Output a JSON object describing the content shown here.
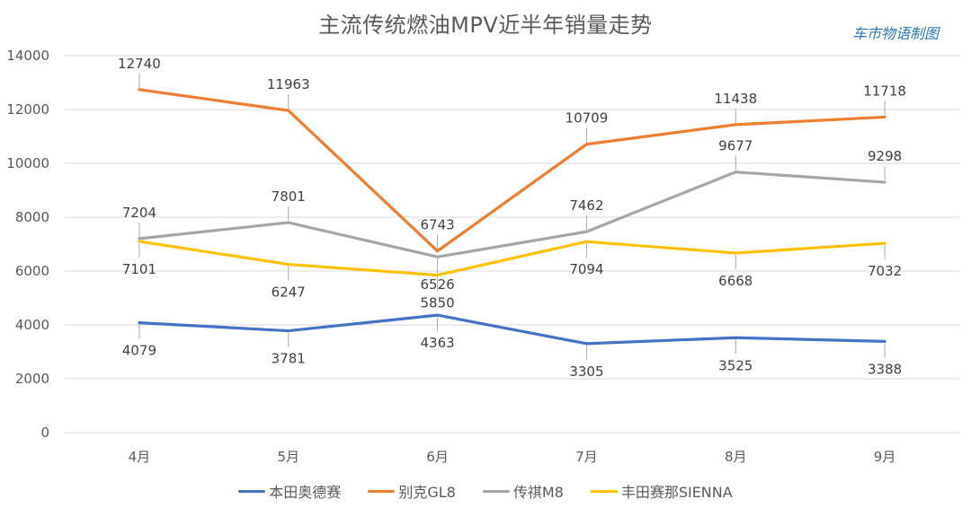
{
  "chart_data": {
    "type": "line",
    "title": "主流传统燃油MPV近半年销量走势",
    "watermark": "车市物语制图",
    "xlabel": "",
    "ylabel": "",
    "categories": [
      "4月",
      "5月",
      "6月",
      "7月",
      "8月",
      "9月"
    ],
    "ylim": [
      0,
      14000
    ],
    "yticks": [
      0,
      2000,
      4000,
      6000,
      8000,
      10000,
      12000,
      14000
    ],
    "grid": true,
    "legend_position": "bottom",
    "series": [
      {
        "name": "本田奥德赛",
        "color": "#4472c4",
        "values": [
          4079,
          3781,
          4363,
          3305,
          3525,
          3388
        ],
        "label_pos": [
          "below",
          "below",
          "below",
          "below",
          "below",
          "below"
        ]
      },
      {
        "name": "别克GL8",
        "color": "#ed7d31",
        "values": [
          12740,
          11963,
          6743,
          10709,
          11438,
          11718
        ],
        "label_pos": [
          "above",
          "above",
          "above",
          "above",
          "above",
          "above"
        ]
      },
      {
        "name": "传祺M8",
        "color": "#a5a5a5",
        "values": [
          7204,
          7801,
          6526,
          7462,
          9677,
          9298
        ],
        "label_pos": [
          "above",
          "above",
          "below",
          "above",
          "above",
          "above"
        ]
      },
      {
        "name": "丰田赛那SIENNA",
        "color": "#ffc000",
        "values": [
          7101,
          6247,
          5850,
          7094,
          6668,
          7032
        ],
        "label_pos": [
          "below",
          "below",
          "below",
          "below",
          "below",
          "below"
        ]
      }
    ]
  }
}
